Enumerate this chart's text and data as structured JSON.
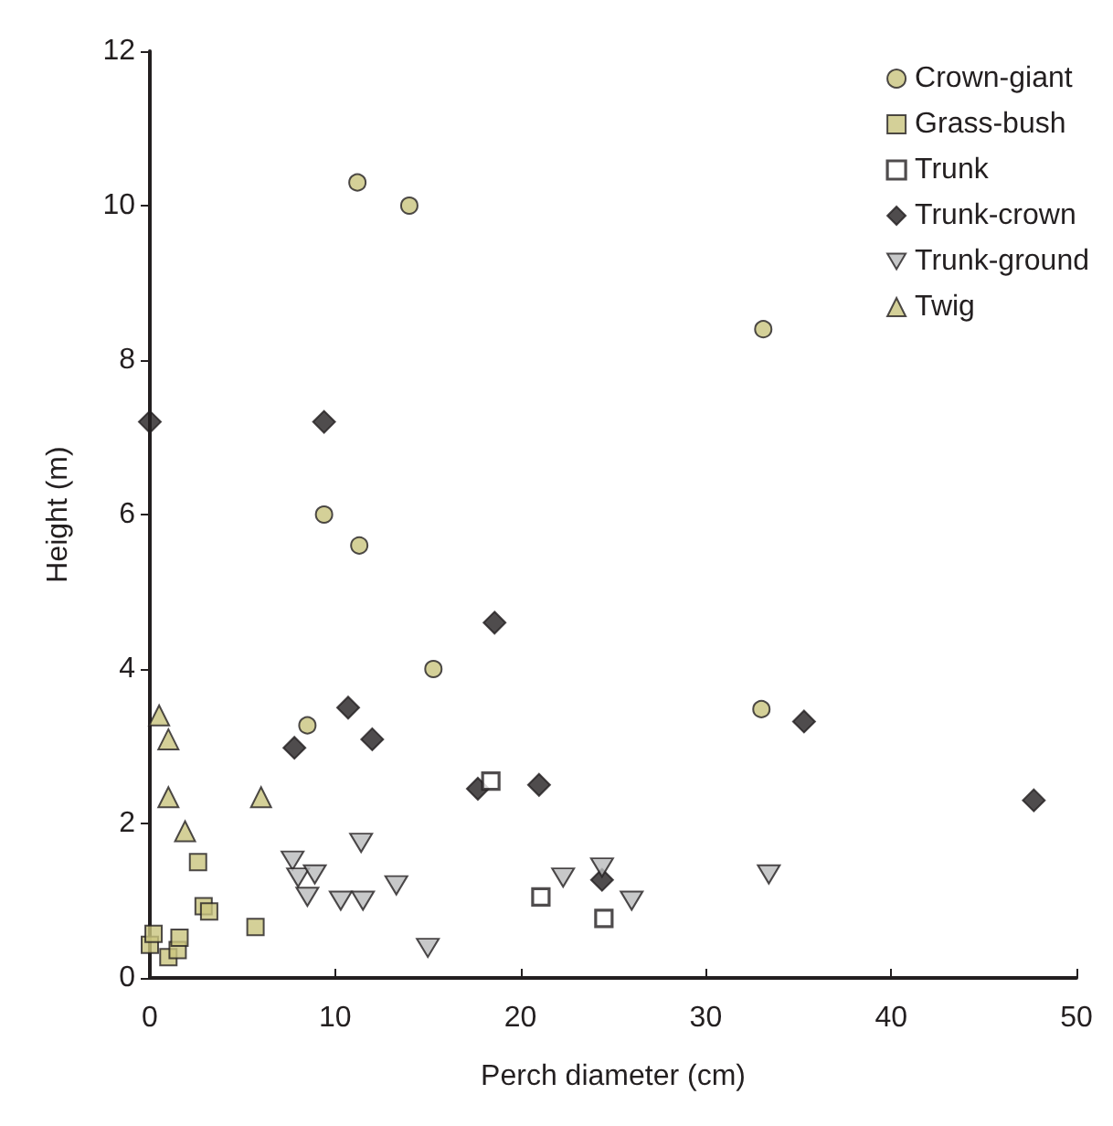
{
  "chart_data": {
    "type": "scatter",
    "xlabel": "Perch diameter (cm)",
    "ylabel": "Height (m)",
    "xlim": [
      0,
      50
    ],
    "ylim": [
      0,
      12
    ],
    "xticks": [
      0,
      10,
      20,
      30,
      40,
      50
    ],
    "yticks": [
      0,
      2,
      4,
      6,
      8,
      10,
      12
    ],
    "grid": false,
    "legend": "top right",
    "series": [
      {
        "name": "Crown-giant",
        "color": "#c9c47e",
        "marker": "circle",
        "x": [
          11.2,
          14.0,
          33.1,
          9.4,
          11.3,
          15.3,
          8.5,
          33.0
        ],
        "values": [
          10.3,
          10.0,
          8.4,
          6.0,
          5.6,
          4.0,
          3.27,
          3.48
        ]
      },
      {
        "name": "Grass-bush",
        "color": "#c9c47e",
        "marker": "square",
        "x": [
          0,
          0.2,
          1.0,
          1.5,
          1.6,
          2.6,
          2.9,
          3.2,
          5.7
        ],
        "values": [
          0.43,
          0.57,
          0.27,
          0.36,
          0.52,
          1.5,
          0.93,
          0.86,
          0.66
        ]
      },
      {
        "name": "Trunk",
        "color": "#ffffff",
        "marker": "square",
        "x": [
          18.4,
          21.1,
          24.5
        ],
        "values": [
          2.55,
          1.05,
          0.77
        ]
      },
      {
        "name": "Trunk-crown",
        "color": "#231f20",
        "marker": "diamond",
        "x": [
          0,
          9.4,
          18.6,
          10.7,
          7.8,
          12.0,
          17.7,
          21.0,
          24.4,
          35.3,
          47.7
        ],
        "values": [
          7.2,
          7.2,
          4.6,
          3.5,
          2.98,
          3.09,
          2.45,
          2.5,
          1.27,
          3.32,
          2.3
        ]
      },
      {
        "name": "Trunk-ground",
        "color": "#b9babc",
        "marker": "triangle-down",
        "x": [
          7.7,
          8.0,
          8.9,
          8.5,
          10.3,
          11.5,
          11.4,
          13.3,
          15.0,
          22.3,
          24.4,
          26.0,
          33.4
        ],
        "values": [
          1.52,
          1.3,
          1.34,
          1.05,
          1.0,
          1.0,
          1.75,
          1.2,
          0.39,
          1.3,
          1.43,
          1.0,
          1.34
        ]
      },
      {
        "name": "Twig",
        "color": "#c9c47e",
        "marker": "triangle",
        "x": [
          0.5,
          1.0,
          1.0,
          1.9,
          6.0
        ],
        "values": [
          3.4,
          3.09,
          2.34,
          1.9,
          2.34
        ]
      }
    ]
  }
}
